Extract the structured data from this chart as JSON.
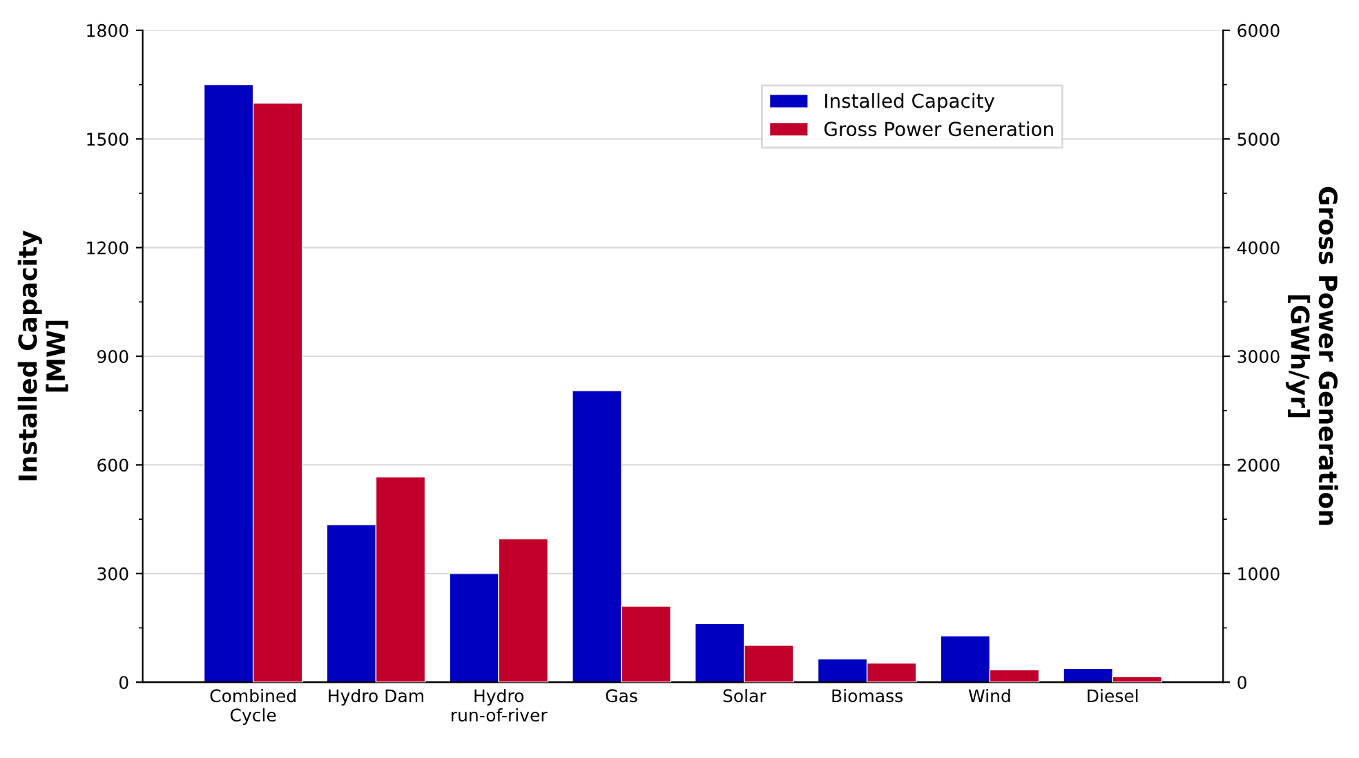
{
  "chart_data": {
    "type": "bar",
    "categories": [
      "Combined\nCycle",
      "Hydro Dam",
      "Hydro\nrun-of-river",
      "Gas",
      "Solar",
      "Biomass",
      "Wind",
      "Diesel"
    ],
    "series": [
      {
        "name": "Installed Capacity",
        "color": "#0000c0",
        "values": [
          1650,
          435,
          300,
          805,
          162,
          64,
          128,
          38
        ]
      },
      {
        "name": "Gross Power Generation",
        "color": "#c0002a",
        "axis": "y2",
        "values": [
          5330,
          1890,
          1320,
          700,
          340,
          176,
          113,
          50
        ]
      }
    ],
    "ylabel": "Installed Capacity\n[MW]",
    "y2label": "Gross Power Generation\n[GWh/yr]",
    "ylim": [
      0,
      1800
    ],
    "yticks": [
      0,
      300,
      600,
      900,
      1200,
      1500,
      1800
    ],
    "y2lim": [
      0,
      6000
    ],
    "y2ticks": [
      0,
      1000,
      2000,
      3000,
      4000,
      5000,
      6000
    ],
    "grid": "y",
    "legend": "top right"
  }
}
